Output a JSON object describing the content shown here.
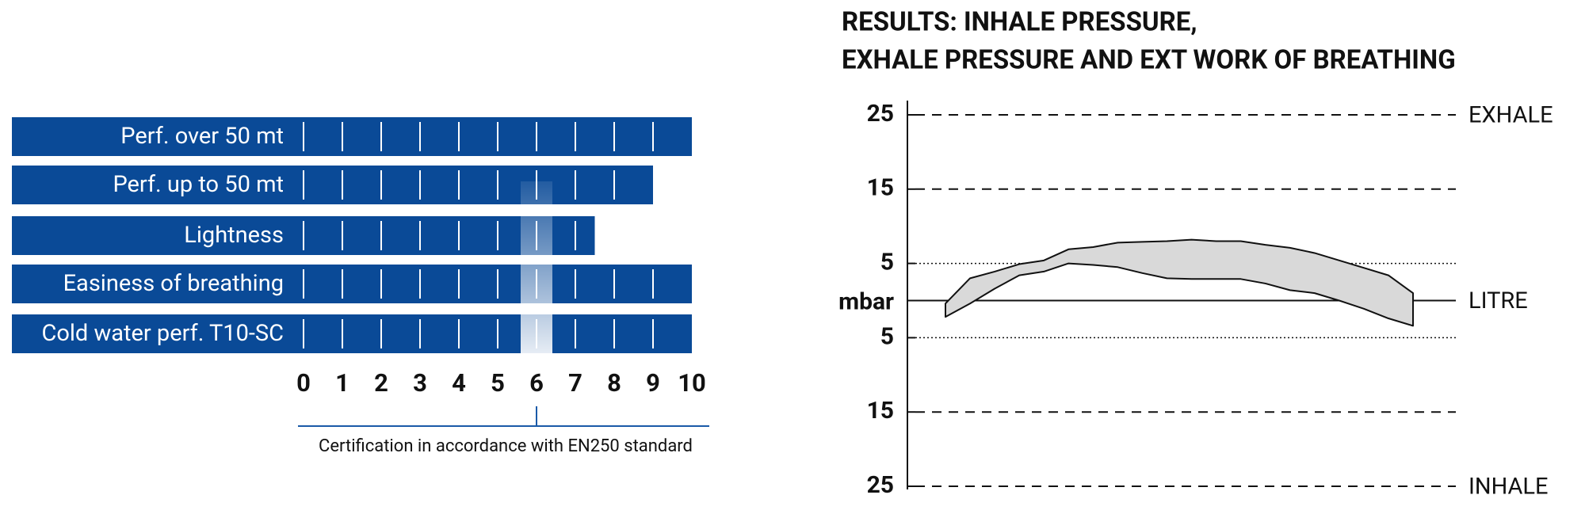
{
  "chart_data": [
    {
      "type": "bar",
      "orientation": "horizontal",
      "categories": [
        "Perf. over 50 mt",
        "Perf. up to 50 mt",
        "Lightness",
        "Easiness of breathing",
        "Cold water perf.  T10-SC"
      ],
      "values": [
        10,
        9,
        7.5,
        10,
        10
      ],
      "color": "#0a4a97",
      "xlim": [
        0,
        10
      ],
      "xticks": [
        0,
        1,
        2,
        3,
        4,
        5,
        6,
        7,
        8,
        9,
        10
      ],
      "highlight": 6,
      "highlight_color": "#1a5aa8",
      "caption": "Certification in accordance with EN250 standard"
    },
    {
      "type": "area",
      "title": [
        "RESULTS: INHALE PRESSURE,",
        "EXHALE PRESSURE AND EXT WORK OF BREATHING"
      ],
      "ylabel": "mbar",
      "ylim": [
        -25,
        25
      ],
      "yticks": [
        25,
        15,
        5,
        {
          "value": -5,
          "label": "5"
        },
        {
          "value": -15,
          "label": "15"
        },
        {
          "value": -25,
          "label": "25"
        }
      ],
      "annotations": [
        {
          "text": "EXHALE",
          "y": 25
        },
        {
          "text": "LITRE",
          "y": 0
        },
        {
          "text": "INHALE",
          "y": -25
        }
      ],
      "series": [
        {
          "color": "#d9d9d9",
          "upper": [
            -0.4,
            3.0,
            3.9,
            4.9,
            5.4,
            6.9,
            7.2,
            7.8,
            7.9,
            8.0,
            8.2,
            8.0,
            8.0,
            7.5,
            7.1,
            6.4,
            5.4,
            4.4,
            3.4,
            1.0
          ],
          "lower": [
            -2.2,
            -0.4,
            1.6,
            3.4,
            3.9,
            5.0,
            4.8,
            4.5,
            3.7,
            3.0,
            2.9,
            2.9,
            2.9,
            2.3,
            1.4,
            1.0,
            0,
            -1.1,
            -2.4,
            -3.4
          ]
        }
      ]
    }
  ]
}
